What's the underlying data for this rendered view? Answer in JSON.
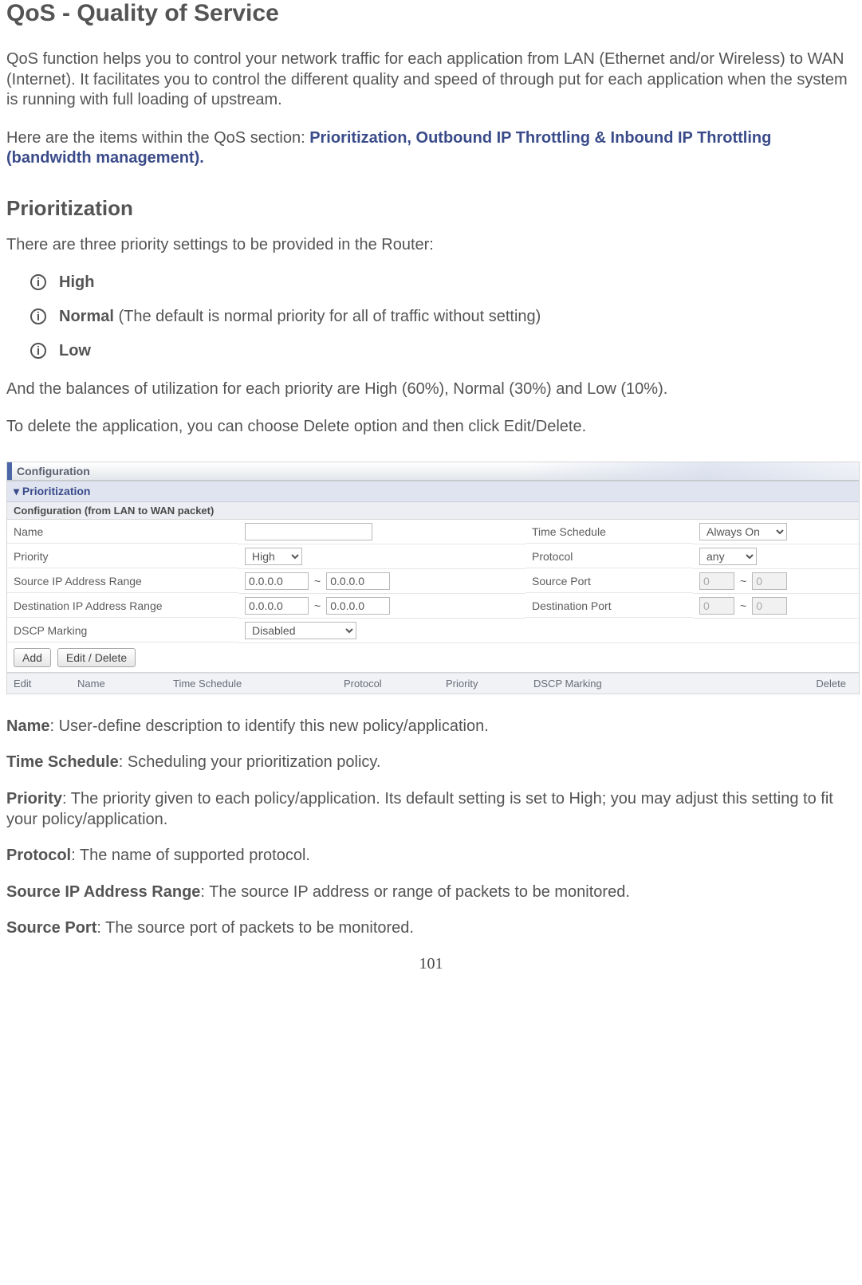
{
  "page": {
    "title": "QoS - Quality of Service",
    "intro": "QoS function helps you to control your network traffic for each application from LAN (Ethernet and/or Wireless) to WAN (Internet).  It facilitates you to control the different quality and speed of through put for each application when the system is running with full loading of upstream.",
    "items_lead": "Here are the items within the QoS section: ",
    "items_bold": "Prioritization, Outbound IP Throttling & Inbound IP Throttling (bandwidth management).",
    "prioritization_title": "Prioritization",
    "prioritization_lead": "There are three priority settings to be provided in the Router:",
    "priorities": {
      "high": "High",
      "normal": "Normal",
      "normal_note": " (The default is normal priority for all of traffic without setting)",
      "low": "Low"
    },
    "balance_text": "And the balances of utilization for each priority are High (60%), Normal (30%) and Low (10%).",
    "delete_text": "To delete the application, you can choose Delete option and then click Edit/Delete.",
    "page_number": "101"
  },
  "panel": {
    "header": "Configuration",
    "section": "Prioritization",
    "subheader": "Configuration (from LAN to WAN packet)",
    "labels": {
      "name": "Name",
      "time_schedule": "Time Schedule",
      "priority": "Priority",
      "protocol": "Protocol",
      "src_ip": "Source IP Address Range",
      "src_port": "Source Port",
      "dst_ip": "Destination IP Address Range",
      "dst_port": "Destination Port",
      "dscp": "DSCP Marking"
    },
    "values": {
      "name": "",
      "time_schedule": "Always On",
      "priority": "High",
      "protocol": "any",
      "ip_a": "0.0.0.0",
      "ip_b": "0.0.0.0",
      "port_a": "0",
      "port_b": "0",
      "dscp": "Disabled"
    },
    "buttons": {
      "add": "Add",
      "edit": "Edit / Delete"
    },
    "list_headers": {
      "edit": "Edit",
      "name": "Name",
      "time_schedule": "Time Schedule",
      "protocol": "Protocol",
      "priority": "Priority",
      "dscp": "DSCP Marking",
      "delete": "Delete"
    }
  },
  "definitions": {
    "name_b": "Name",
    "name_t": ": User-define description to identify this new policy/application.",
    "ts_b": "Time Schedule",
    "ts_t": ": Scheduling your prioritization policy.",
    "pri_b": "Priority",
    "pri_t": ": The priority given to each policy/application. Its default setting is set to High; you may adjust this setting to fit your policy/application.",
    "proto_b": "Protocol",
    "proto_t": ": The name of supported protocol.",
    "sip_b": "Source IP Address Range",
    "sip_t": ": The source IP address or range of packets to be monitored.",
    "sport_b": "Source Port",
    "sport_t": ": The source port of packets to be monitored."
  },
  "colors": {
    "text": "#545454",
    "blue": "#3a4b8a",
    "panel_border": "#d6d6d6",
    "section_bg": "#dfe4f0",
    "sub_bg": "#eceef3"
  }
}
